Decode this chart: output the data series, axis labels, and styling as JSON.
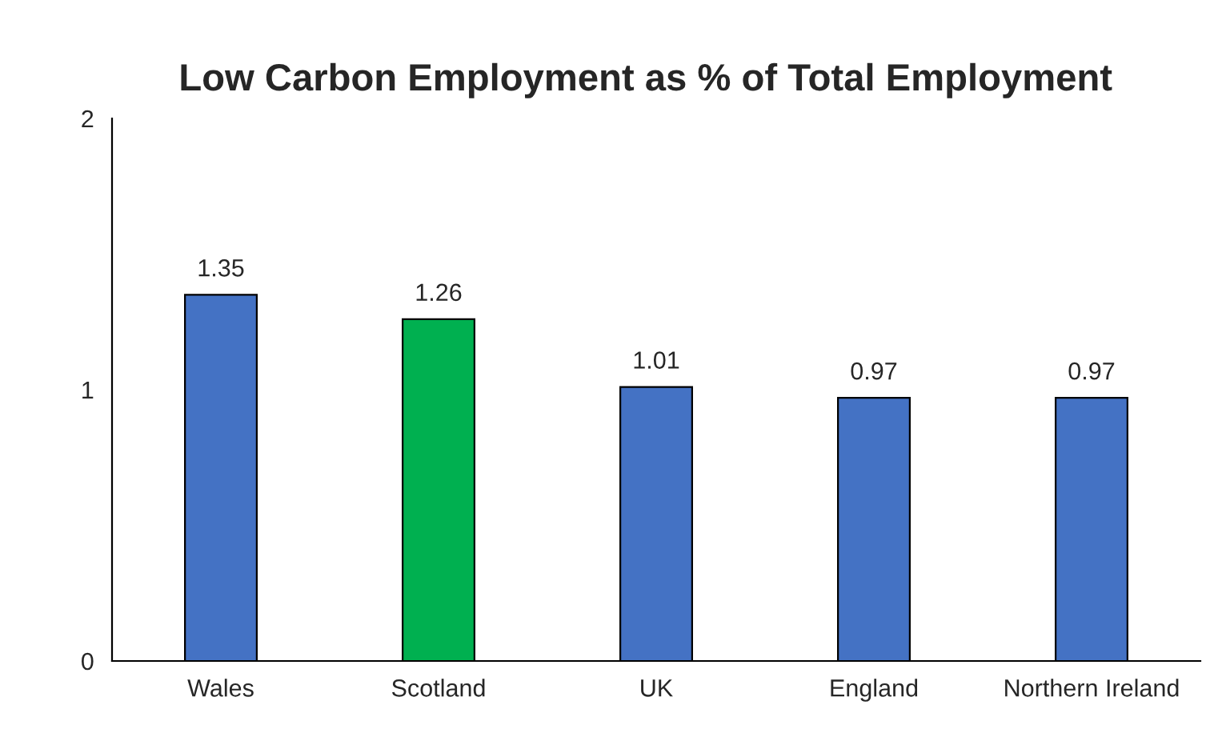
{
  "chart_data": {
    "type": "bar",
    "title": "Low Carbon Employment as % of Total Employment",
    "categories": [
      "Wales",
      "Scotland",
      "UK",
      "England",
      "Northern Ireland"
    ],
    "values": [
      1.35,
      1.26,
      1.01,
      0.97,
      0.97
    ],
    "colors": [
      "#4472c4",
      "#00b050",
      "#4472c4",
      "#4472c4",
      "#4472c4"
    ],
    "ylim": [
      0,
      2
    ],
    "yticks": [
      0,
      1,
      2
    ],
    "grid": false,
    "data_labels": true
  }
}
